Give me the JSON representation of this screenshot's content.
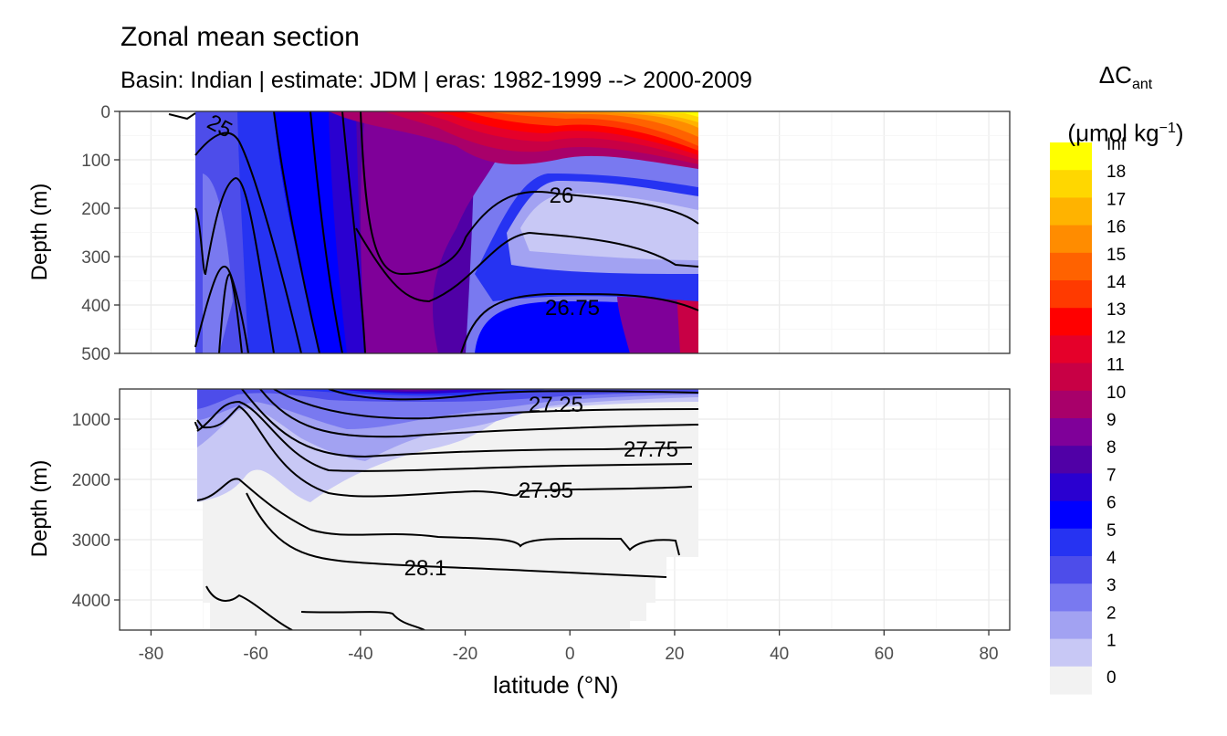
{
  "title": "Zonal mean section",
  "subtitle": "Basin: Indian | estimate: JDM  | eras: 1982-1999 --> 2000-2009",
  "xlabel": "latitude (°N)",
  "ylabel": "Depth (m)",
  "legend": {
    "title_main": "ΔC",
    "title_sub": "ant",
    "units_main": "(μmol kg",
    "units_sup": "−1",
    "units_end": ")",
    "labels": [
      "Inf",
      "18",
      "17",
      "16",
      "15",
      "14",
      "13",
      "12",
      "11",
      "10",
      "9",
      "8",
      "7",
      "6",
      "5",
      "4",
      "3",
      "2",
      "1",
      "0"
    ],
    "colors": [
      "#FFFF00",
      "#FFD700",
      "#FFB300",
      "#FF8C00",
      "#FF6200",
      "#FF3A00",
      "#FF0000",
      "#E5002A",
      "#C80045",
      "#A8006A",
      "#7F0099",
      "#5000A6",
      "#2A00D0",
      "#0000FF",
      "#2633F2",
      "#4D4DEA",
      "#7979F0",
      "#A2A2F2",
      "#C8C8F5",
      "#F2F2F2"
    ]
  },
  "chart_data": {
    "type": "heatmap",
    "description_of_fill": "anthropogenic carbon change, filled contours",
    "x_ticks": [
      "-80",
      "-60",
      "-40",
      "-20",
      "0",
      "20",
      "40",
      "60",
      "80"
    ],
    "xlim": [
      -86,
      84
    ],
    "data_lat_range": [
      -70,
      25.5
    ],
    "panels": [
      {
        "name": "upper",
        "ylim": [
          0,
          500
        ],
        "y_ticks": [
          "0",
          "100",
          "200",
          "300",
          "400",
          "500"
        ],
        "density_labels": [
          "25",
          "26",
          "26.75"
        ]
      },
      {
        "name": "lower",
        "ylim": [
          500,
          4500
        ],
        "y_ticks": [
          "1000",
          "2000",
          "3000",
          "4000"
        ],
        "density_labels": [
          "27.25",
          "27.75",
          "27.95",
          "28.1"
        ]
      }
    ]
  }
}
